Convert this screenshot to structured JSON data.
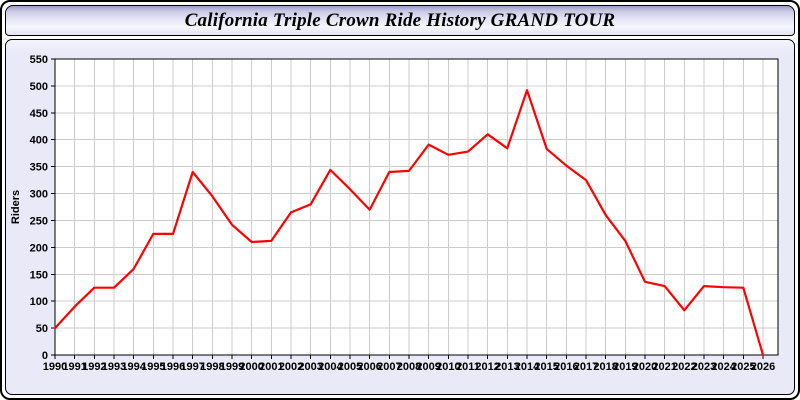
{
  "window": {
    "title": "California Triple Crown Ride History GRAND TOUR"
  },
  "chart": {
    "colors": {
      "line": "#ff0000",
      "grid": "#cccccc",
      "axis": "#000000",
      "plot_bg": "#ffffff",
      "panel_bg": "#e9e9f8"
    }
  },
  "chart_data": {
    "type": "line",
    "title": "California Triple Crown Ride History GRAND TOUR",
    "xlabel": "",
    "ylabel": "Riders",
    "xlim": [
      1990,
      2026.8
    ],
    "ylim": [
      0,
      550
    ],
    "ytick_step": 50,
    "grid": true,
    "legend": false,
    "x": [
      1990,
      1991,
      1992,
      1993,
      1994,
      1995,
      1996,
      1997,
      1998,
      1999,
      2000,
      2001,
      2002,
      2003,
      2004,
      2005,
      2006,
      2007,
      2008,
      2009,
      2010,
      2011,
      2012,
      2013,
      2014,
      2015,
      2016,
      2017,
      2018,
      2019,
      2020,
      2021,
      2022,
      2023,
      2024,
      2025,
      2026
    ],
    "series": [
      {
        "name": "Riders",
        "color": "#ff0000",
        "values": [
          50,
          90,
          125,
          125,
          160,
          225,
          225,
          340,
          295,
          242,
          210,
          212,
          265,
          280,
          344,
          308,
          270,
          340,
          342,
          391,
          372,
          378,
          410,
          384,
          492,
          383,
          352,
          325,
          260,
          212,
          136,
          128,
          83,
          128,
          126,
          125,
          0
        ]
      }
    ]
  }
}
